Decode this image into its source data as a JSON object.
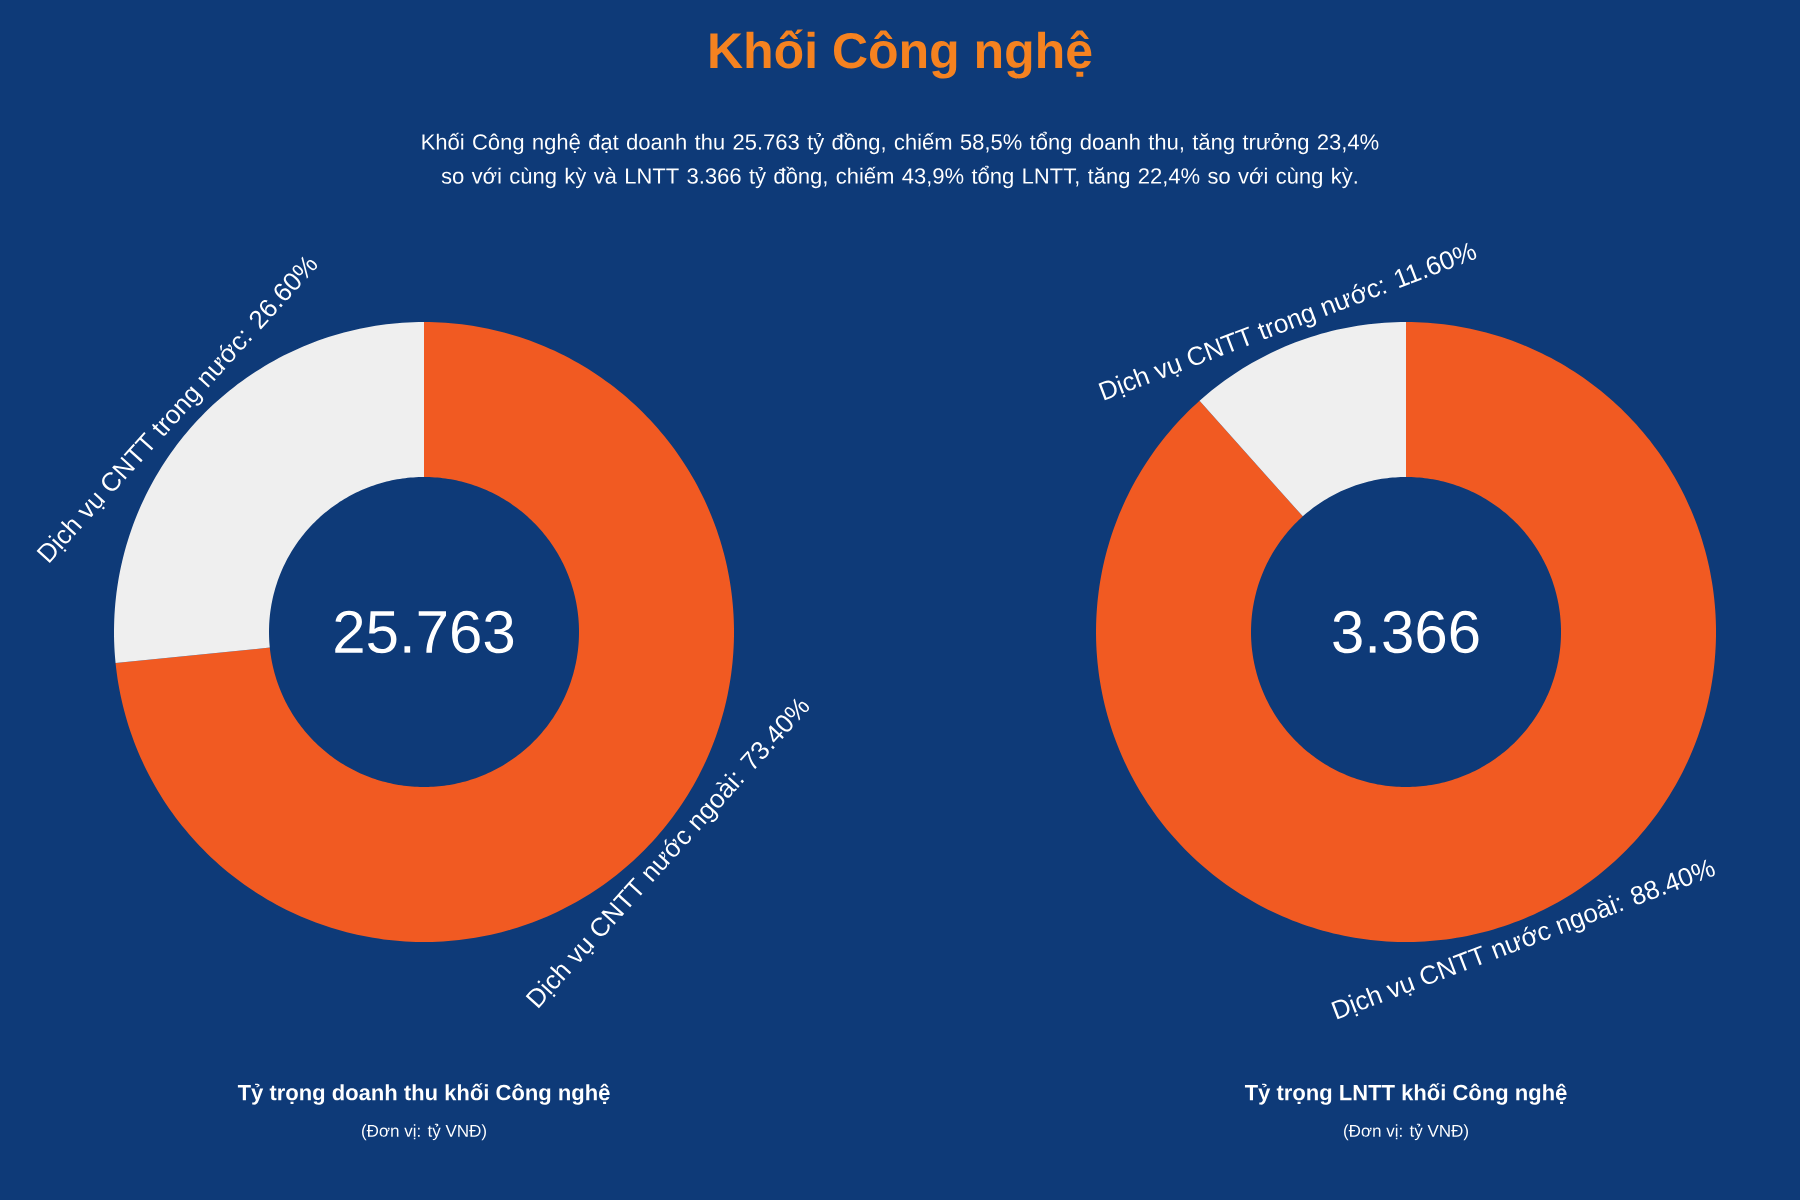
{
  "chart_data": [
    {
      "type": "donut",
      "title": "Khối Công nghệ",
      "subtitle": "Khối Công nghệ đạt doanh thu 25.763 tỷ đồng, chiếm 58,5% tổng doanh thu, tăng trưởng 23,4% so với cùng kỳ và LNTT 3.366 tỷ đồng, chiếm 43,9% tổng LNTT, tăng 22,4% so với cùng kỳ.",
      "categories": [
        "Dịch vụ CNTT nước ngoài: 73.40%",
        "Dịch vụ CNTT trong nước: 26.60%"
      ],
      "values": [
        73.4,
        26.6
      ],
      "colors": [
        "#f15a22",
        "#efefef"
      ],
      "annotations": [
        "25.763",
        "Tỷ trọng doanh thu khối Công nghệ",
        "(Đơn vị: tỷ VNĐ)"
      ]
    },
    {
      "type": "donut",
      "categories": [
        "Dịch vụ CNTT nước ngoài: 88.40%",
        "Dịch vụ CNTT trong nước: 11.60%"
      ],
      "values": [
        88.4,
        11.6
      ],
      "colors": [
        "#f15a22",
        "#efefef"
      ],
      "annotations": [
        "3.366",
        "Tỷ trọng LNTT khối Công nghệ",
        "(Đơn vị: tỷ VNĐ)"
      ]
    }
  ]
}
